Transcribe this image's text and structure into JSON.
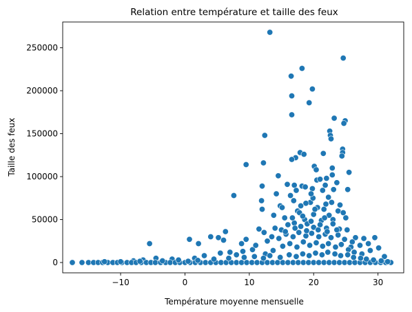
{
  "chart_data": {
    "type": "scatter",
    "title": "Relation entre température et taille des feux",
    "xlabel": "Température moyenne mensuelle",
    "ylabel": "Taille des feux",
    "xlim": [
      -19.0,
      34.0
    ],
    "ylim": [
      -12000,
      280000
    ],
    "xticks": [
      -10,
      0,
      10,
      20,
      30
    ],
    "yticks": [
      0,
      50000,
      100000,
      150000,
      200000,
      250000
    ],
    "xtick_labels": [
      "−10",
      "0",
      "10",
      "20",
      "30"
    ],
    "ytick_labels": [
      "0",
      "50000",
      "100000",
      "150000",
      "200000",
      "250000"
    ],
    "grid": false,
    "legend": "none",
    "colors": {
      "point": "#1f77b4",
      "point_edge": "#ffffff",
      "frame": "#000000"
    },
    "series": [
      {
        "points": [
          [
            13.2,
            268000
          ],
          [
            24.6,
            238000
          ],
          [
            18.2,
            226000
          ],
          [
            16.5,
            217000
          ],
          [
            19.8,
            202000
          ],
          [
            16.6,
            194000
          ],
          [
            19.3,
            186000
          ],
          [
            16.6,
            172000
          ],
          [
            23.2,
            168000
          ],
          [
            24.9,
            165000
          ],
          [
            24.7,
            162000
          ],
          [
            22.5,
            153000
          ],
          [
            12.4,
            148000
          ],
          [
            22.6,
            148000
          ],
          [
            22.7,
            144000
          ],
          [
            24.5,
            132000
          ],
          [
            24.5,
            128000
          ],
          [
            24.4,
            124000
          ],
          [
            17.9,
            128000
          ],
          [
            18.5,
            126000
          ],
          [
            21.5,
            127000
          ],
          [
            17.2,
            122000
          ],
          [
            16.6,
            120000
          ],
          [
            20.1,
            112000
          ],
          [
            20.4,
            108000
          ],
          [
            22.9,
            110000
          ],
          [
            9.5,
            114000
          ],
          [
            12.2,
            116000
          ],
          [
            25.5,
            105000
          ],
          [
            22.9,
            102000
          ],
          [
            18.2,
            89000
          ],
          [
            18.7,
            88000
          ],
          [
            19.8,
            86000
          ],
          [
            21.4,
            84000
          ],
          [
            23.1,
            85000
          ],
          [
            25.3,
            85000
          ],
          [
            7.6,
            78000
          ],
          [
            12.0,
            89000
          ],
          [
            14.5,
            101000
          ],
          [
            15.9,
            91000
          ],
          [
            17.0,
            90000
          ],
          [
            20.5,
            96000
          ],
          [
            21.0,
            97000
          ],
          [
            22.0,
            98000
          ],
          [
            23.6,
            93000
          ],
          [
            11.9,
            72000
          ],
          [
            12.0,
            62000
          ],
          [
            14.8,
            66000
          ],
          [
            16.4,
            78000
          ],
          [
            16.9,
            72000
          ],
          [
            17.5,
            60000
          ],
          [
            18.0,
            66000
          ],
          [
            19.5,
            70000
          ],
          [
            20.6,
            64000
          ],
          [
            21.9,
            68000
          ],
          [
            22.8,
            70000
          ],
          [
            24.1,
            67000
          ],
          [
            14.2,
            80000
          ],
          [
            15.1,
            64000
          ],
          [
            19.9,
            75000
          ],
          [
            21.6,
            62000
          ],
          [
            23.8,
            60000
          ],
          [
            17.8,
            58000
          ],
          [
            20.0,
            56000
          ],
          [
            22.4,
            55000
          ],
          [
            24.6,
            58000
          ],
          [
            13.8,
            55000
          ],
          [
            15.5,
            52000
          ],
          [
            18.6,
            50000
          ],
          [
            21.2,
            49000
          ],
          [
            23.0,
            50000
          ],
          [
            25.0,
            52000
          ],
          [
            6.3,
            36000
          ],
          [
            5.2,
            29000
          ],
          [
            6.0,
            26000
          ],
          [
            -5.5,
            22000
          ],
          [
            0.7,
            27000
          ],
          [
            2.1,
            22000
          ],
          [
            4.0,
            30000
          ],
          [
            8.8,
            22000
          ],
          [
            9.5,
            27000
          ],
          [
            11.5,
            39000
          ],
          [
            12.3,
            35000
          ],
          [
            14.0,
            40000
          ],
          [
            15.0,
            38000
          ],
          [
            16.0,
            44000
          ],
          [
            17.0,
            46000
          ],
          [
            18.0,
            42000
          ],
          [
            19.0,
            45000
          ],
          [
            20.0,
            41000
          ],
          [
            21.0,
            44000
          ],
          [
            22.0,
            40000
          ],
          [
            23.0,
            45000
          ],
          [
            24.0,
            39000
          ],
          [
            25.2,
            38000
          ],
          [
            26.5,
            29000
          ],
          [
            27.8,
            28000
          ],
          [
            28.5,
            22000
          ],
          [
            29.5,
            29000
          ],
          [
            27.2,
            20000
          ],
          [
            28.8,
            14000
          ],
          [
            30.1,
            17000
          ],
          [
            31.0,
            7000
          ],
          [
            26.0,
            24000
          ],
          [
            25.8,
            18000
          ],
          [
            10.5,
            15000
          ],
          [
            11.0,
            20000
          ],
          [
            12.8,
            25000
          ],
          [
            13.5,
            30000
          ],
          [
            14.6,
            28000
          ],
          [
            15.7,
            33000
          ],
          [
            16.8,
            30000
          ],
          [
            17.7,
            35000
          ],
          [
            18.8,
            31000
          ],
          [
            19.7,
            34000
          ],
          [
            20.8,
            30000
          ],
          [
            21.8,
            33000
          ],
          [
            22.7,
            29000
          ],
          [
            23.8,
            32000
          ],
          [
            24.8,
            27000
          ],
          [
            12.5,
            10000
          ],
          [
            13.7,
            14000
          ],
          [
            15.2,
            19000
          ],
          [
            16.3,
            22000
          ],
          [
            17.4,
            18000
          ],
          [
            18.4,
            24000
          ],
          [
            19.4,
            20000
          ],
          [
            20.4,
            23000
          ],
          [
            21.4,
            19000
          ],
          [
            22.3,
            22000
          ],
          [
            23.4,
            18000
          ],
          [
            24.3,
            21000
          ],
          [
            25.4,
            15000
          ],
          [
            26.3,
            12000
          ],
          [
            27.5,
            10000
          ],
          [
            7.0,
            12000
          ],
          [
            8.0,
            9000
          ],
          [
            9.0,
            13000
          ],
          [
            3.0,
            8000
          ],
          [
            5.5,
            11000
          ],
          [
            1.5,
            5000
          ],
          [
            -2.0,
            4000
          ],
          [
            -4.5,
            5000
          ],
          [
            -6.5,
            3000
          ],
          [
            -8.0,
            2000
          ],
          [
            -17.5,
            0
          ],
          [
            -16.0,
            0
          ],
          [
            -15.0,
            0
          ],
          [
            -14.2,
            0
          ],
          [
            -13.5,
            0
          ],
          [
            -12.8,
            0
          ],
          [
            -12.0,
            0
          ],
          [
            -11.2,
            0
          ],
          [
            -10.5,
            0
          ],
          [
            -9.8,
            0
          ],
          [
            -9.0,
            0
          ],
          [
            -8.3,
            0
          ],
          [
            -7.6,
            0
          ],
          [
            -6.8,
            0
          ],
          [
            -6.0,
            0
          ],
          [
            -5.3,
            0
          ],
          [
            -4.6,
            0
          ],
          [
            -3.8,
            0
          ],
          [
            -3.0,
            0
          ],
          [
            -2.3,
            0
          ],
          [
            -1.5,
            0
          ],
          [
            -0.8,
            0
          ],
          [
            0.0,
            0
          ],
          [
            0.8,
            0
          ],
          [
            1.6,
            0
          ],
          [
            2.4,
            0
          ],
          [
            3.2,
            0
          ],
          [
            4.0,
            0
          ],
          [
            4.8,
            0
          ],
          [
            5.6,
            0
          ],
          [
            6.4,
            0
          ],
          [
            7.2,
            0
          ],
          [
            8.0,
            0
          ],
          [
            8.8,
            0
          ],
          [
            9.6,
            0
          ],
          [
            10.4,
            0
          ],
          [
            11.2,
            0
          ],
          [
            12.0,
            0
          ],
          [
            12.8,
            0
          ],
          [
            13.6,
            0
          ],
          [
            14.4,
            0
          ],
          [
            15.2,
            0
          ],
          [
            16.0,
            0
          ],
          [
            16.8,
            0
          ],
          [
            17.6,
            0
          ],
          [
            18.4,
            0
          ],
          [
            19.2,
            0
          ],
          [
            20.0,
            0
          ],
          [
            20.8,
            0
          ],
          [
            21.6,
            0
          ],
          [
            22.4,
            0
          ],
          [
            23.2,
            0
          ],
          [
            24.0,
            0
          ],
          [
            24.8,
            0
          ],
          [
            25.6,
            0
          ],
          [
            26.4,
            0
          ],
          [
            27.2,
            0
          ],
          [
            28.0,
            0
          ],
          [
            28.8,
            0
          ],
          [
            29.6,
            0
          ],
          [
            30.4,
            0
          ],
          [
            31.2,
            0
          ],
          [
            32.0,
            0
          ],
          [
            -3.5,
            2000
          ],
          [
            -1.0,
            3000
          ],
          [
            2.0,
            2500
          ],
          [
            4.5,
            4000
          ],
          [
            6.8,
            5000
          ],
          [
            9.2,
            6000
          ],
          [
            10.8,
            7000
          ],
          [
            12.2,
            5000
          ],
          [
            13.2,
            8000
          ],
          [
            14.8,
            6000
          ],
          [
            16.2,
            9000
          ],
          [
            17.3,
            7000
          ],
          [
            18.3,
            10000
          ],
          [
            19.3,
            8000
          ],
          [
            20.3,
            11000
          ],
          [
            21.3,
            9000
          ],
          [
            22.2,
            12000
          ],
          [
            23.3,
            10000
          ],
          [
            24.2,
            8000
          ],
          [
            25.3,
            9000
          ],
          [
            26.2,
            6000
          ],
          [
            27.3,
            5000
          ],
          [
            28.2,
            4000
          ],
          [
            29.3,
            3000
          ],
          [
            30.5,
            2000
          ],
          [
            31.5,
            1000
          ],
          [
            -10.0,
            1000
          ],
          [
            -12.5,
            1000
          ],
          [
            -7.0,
            1500
          ],
          [
            0.5,
            1500
          ],
          [
            15.6,
            36000
          ],
          [
            17.1,
            40000
          ],
          [
            18.9,
            37000
          ],
          [
            20.7,
            38000
          ],
          [
            22.1,
            36000
          ],
          [
            23.6,
            38000
          ],
          [
            16.7,
            52000
          ],
          [
            18.3,
            54000
          ],
          [
            19.6,
            48000
          ],
          [
            21.7,
            52000
          ],
          [
            20.2,
            62000
          ],
          [
            18.8,
            69000
          ],
          [
            22.3,
            76000
          ],
          [
            17.3,
            84000
          ],
          [
            21.8,
            90000
          ],
          [
            19.6,
            80000
          ]
        ]
      }
    ]
  }
}
